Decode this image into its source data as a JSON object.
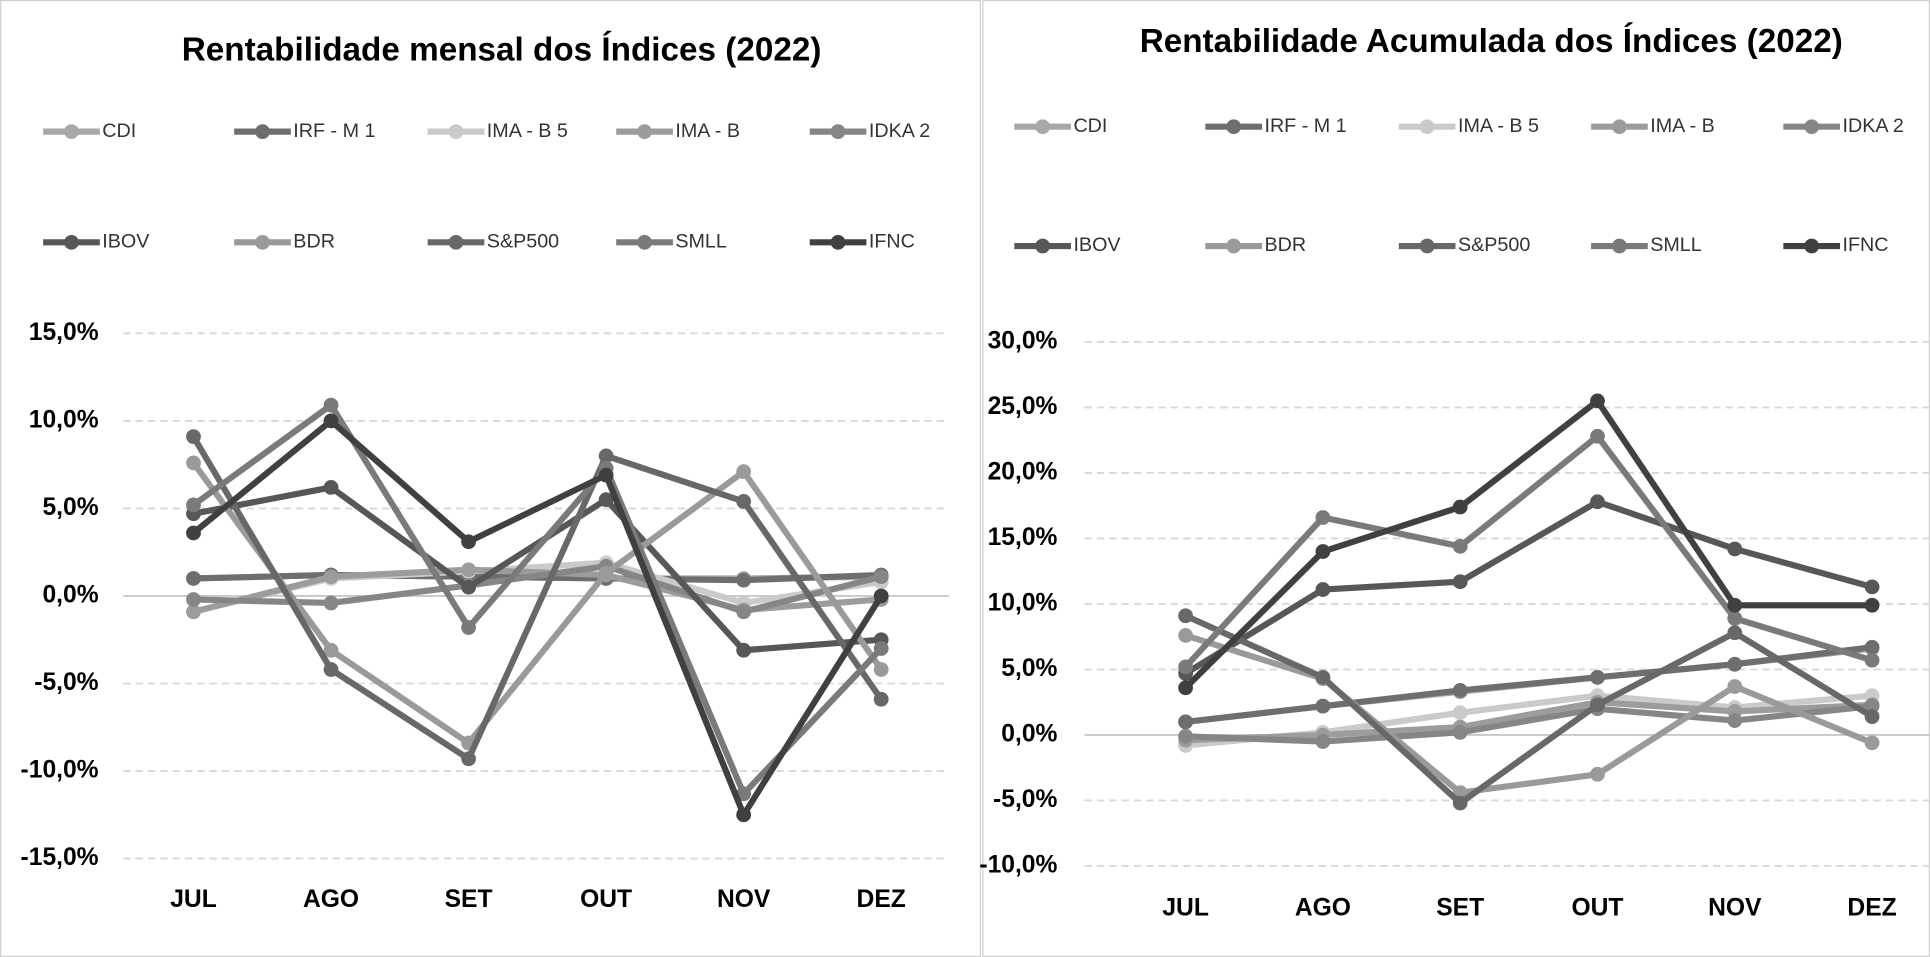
{
  "chart_data": [
    {
      "type": "line",
      "title": "Rentabilidade mensal dos Índices (2022)",
      "categories": [
        "JUL",
        "AGO",
        "SET",
        "OUT",
        "NOV",
        "DEZ"
      ],
      "ylim": [
        -15,
        15
      ],
      "yticks": [
        {
          "value": -15,
          "label": "-15,0%"
        },
        {
          "value": -10,
          "label": "-10,0%"
        },
        {
          "value": -5,
          "label": "-5,0%"
        },
        {
          "value": 0,
          "label": "0,0%"
        },
        {
          "value": 5,
          "label": "5,0%"
        },
        {
          "value": 10,
          "label": "10,0%"
        },
        {
          "value": 15,
          "label": "15,0%"
        }
      ],
      "grid": true,
      "series": [
        {
          "name": "CDI",
          "color": "#a8a8a8",
          "values": [
            1.0,
            1.2,
            1.1,
            1.0,
            1.0,
            1.1
          ]
        },
        {
          "name": "IRF - M 1",
          "color": "#6e6e6e",
          "values": [
            1.0,
            1.2,
            1.1,
            1.0,
            0.9,
            1.2
          ]
        },
        {
          "name": "IMA - B 5",
          "color": "#cacaca",
          "values": [
            -0.9,
            1.0,
            1.4,
            1.9,
            -0.4,
            0.8
          ]
        },
        {
          "name": "IMA - B",
          "color": "#9c9c9c",
          "values": [
            -0.9,
            1.1,
            1.5,
            1.2,
            -0.8,
            -0.2
          ]
        },
        {
          "name": "IDKA 2",
          "color": "#868686",
          "values": [
            -0.2,
            -0.4,
            0.6,
            1.7,
            -0.9,
            1.1
          ]
        },
        {
          "name": "IBOV",
          "color": "#575757",
          "values": [
            4.7,
            6.2,
            0.5,
            5.5,
            -3.1,
            -2.5
          ]
        },
        {
          "name": "BDR",
          "color": "#9a9a9a",
          "values": [
            7.6,
            -3.1,
            -8.4,
            1.3,
            7.1,
            -4.2
          ]
        },
        {
          "name": "S&P500",
          "color": "#686868",
          "values": [
            9.1,
            -4.2,
            -9.3,
            8.0,
            5.4,
            -5.9
          ]
        },
        {
          "name": "SMLL",
          "color": "#7a7a7a",
          "values": [
            5.2,
            10.9,
            -1.8,
            7.3,
            -11.3,
            -3.0
          ]
        },
        {
          "name": "IFNC",
          "color": "#404040",
          "values": [
            3.6,
            10.0,
            3.1,
            6.9,
            -12.5,
            0.0
          ]
        }
      ]
    },
    {
      "type": "line",
      "title": "Rentabilidade Acumulada dos Índices (2022)",
      "categories": [
        "JUL",
        "AGO",
        "SET",
        "OUT",
        "NOV",
        "DEZ"
      ],
      "ylim": [
        -10,
        30
      ],
      "yticks": [
        {
          "value": -10,
          "label": "-10,0%"
        },
        {
          "value": -5,
          "label": "-5,0%"
        },
        {
          "value": 0,
          "label": "0,0%"
        },
        {
          "value": 5,
          "label": "5,0%"
        },
        {
          "value": 10,
          "label": "10,0%"
        },
        {
          "value": 15,
          "label": "15,0%"
        },
        {
          "value": 20,
          "label": "20,0%"
        },
        {
          "value": 25,
          "label": "25,0%"
        },
        {
          "value": 30,
          "label": "30,0%"
        }
      ],
      "grid": true,
      "series": [
        {
          "name": "CDI",
          "color": "#a8a8a8",
          "values": [
            1.0,
            2.2,
            3.3,
            4.4,
            5.4,
            6.6
          ]
        },
        {
          "name": "IRF - M 1",
          "color": "#6e6e6e",
          "values": [
            1.0,
            2.2,
            3.4,
            4.4,
            5.4,
            6.7
          ]
        },
        {
          "name": "IMA - B 5",
          "color": "#cacaca",
          "values": [
            -0.8,
            0.2,
            1.7,
            3.0,
            2.1,
            3.0
          ]
        },
        {
          "name": "IMA - B",
          "color": "#9c9c9c",
          "values": [
            -0.4,
            0.0,
            0.6,
            2.5,
            1.8,
            2.3
          ]
        },
        {
          "name": "IDKA 2",
          "color": "#868686",
          "values": [
            -0.1,
            -0.5,
            0.2,
            2.0,
            1.1,
            2.2
          ]
        },
        {
          "name": "IBOV",
          "color": "#575757",
          "values": [
            4.7,
            11.1,
            11.7,
            17.8,
            14.2,
            11.3
          ]
        },
        {
          "name": "BDR",
          "color": "#9a9a9a",
          "values": [
            7.6,
            4.3,
            -4.4,
            -3.0,
            3.7,
            -0.6
          ]
        },
        {
          "name": "S&P500",
          "color": "#686868",
          "values": [
            9.1,
            4.4,
            -5.2,
            2.3,
            7.8,
            1.4
          ]
        },
        {
          "name": "SMLL",
          "color": "#7a7a7a",
          "values": [
            5.2,
            16.6,
            14.4,
            22.8,
            8.9,
            5.7
          ]
        },
        {
          "name": "IFNC",
          "color": "#404040",
          "values": [
            3.6,
            14.0,
            17.4,
            25.5,
            9.9,
            9.9
          ]
        }
      ]
    }
  ]
}
